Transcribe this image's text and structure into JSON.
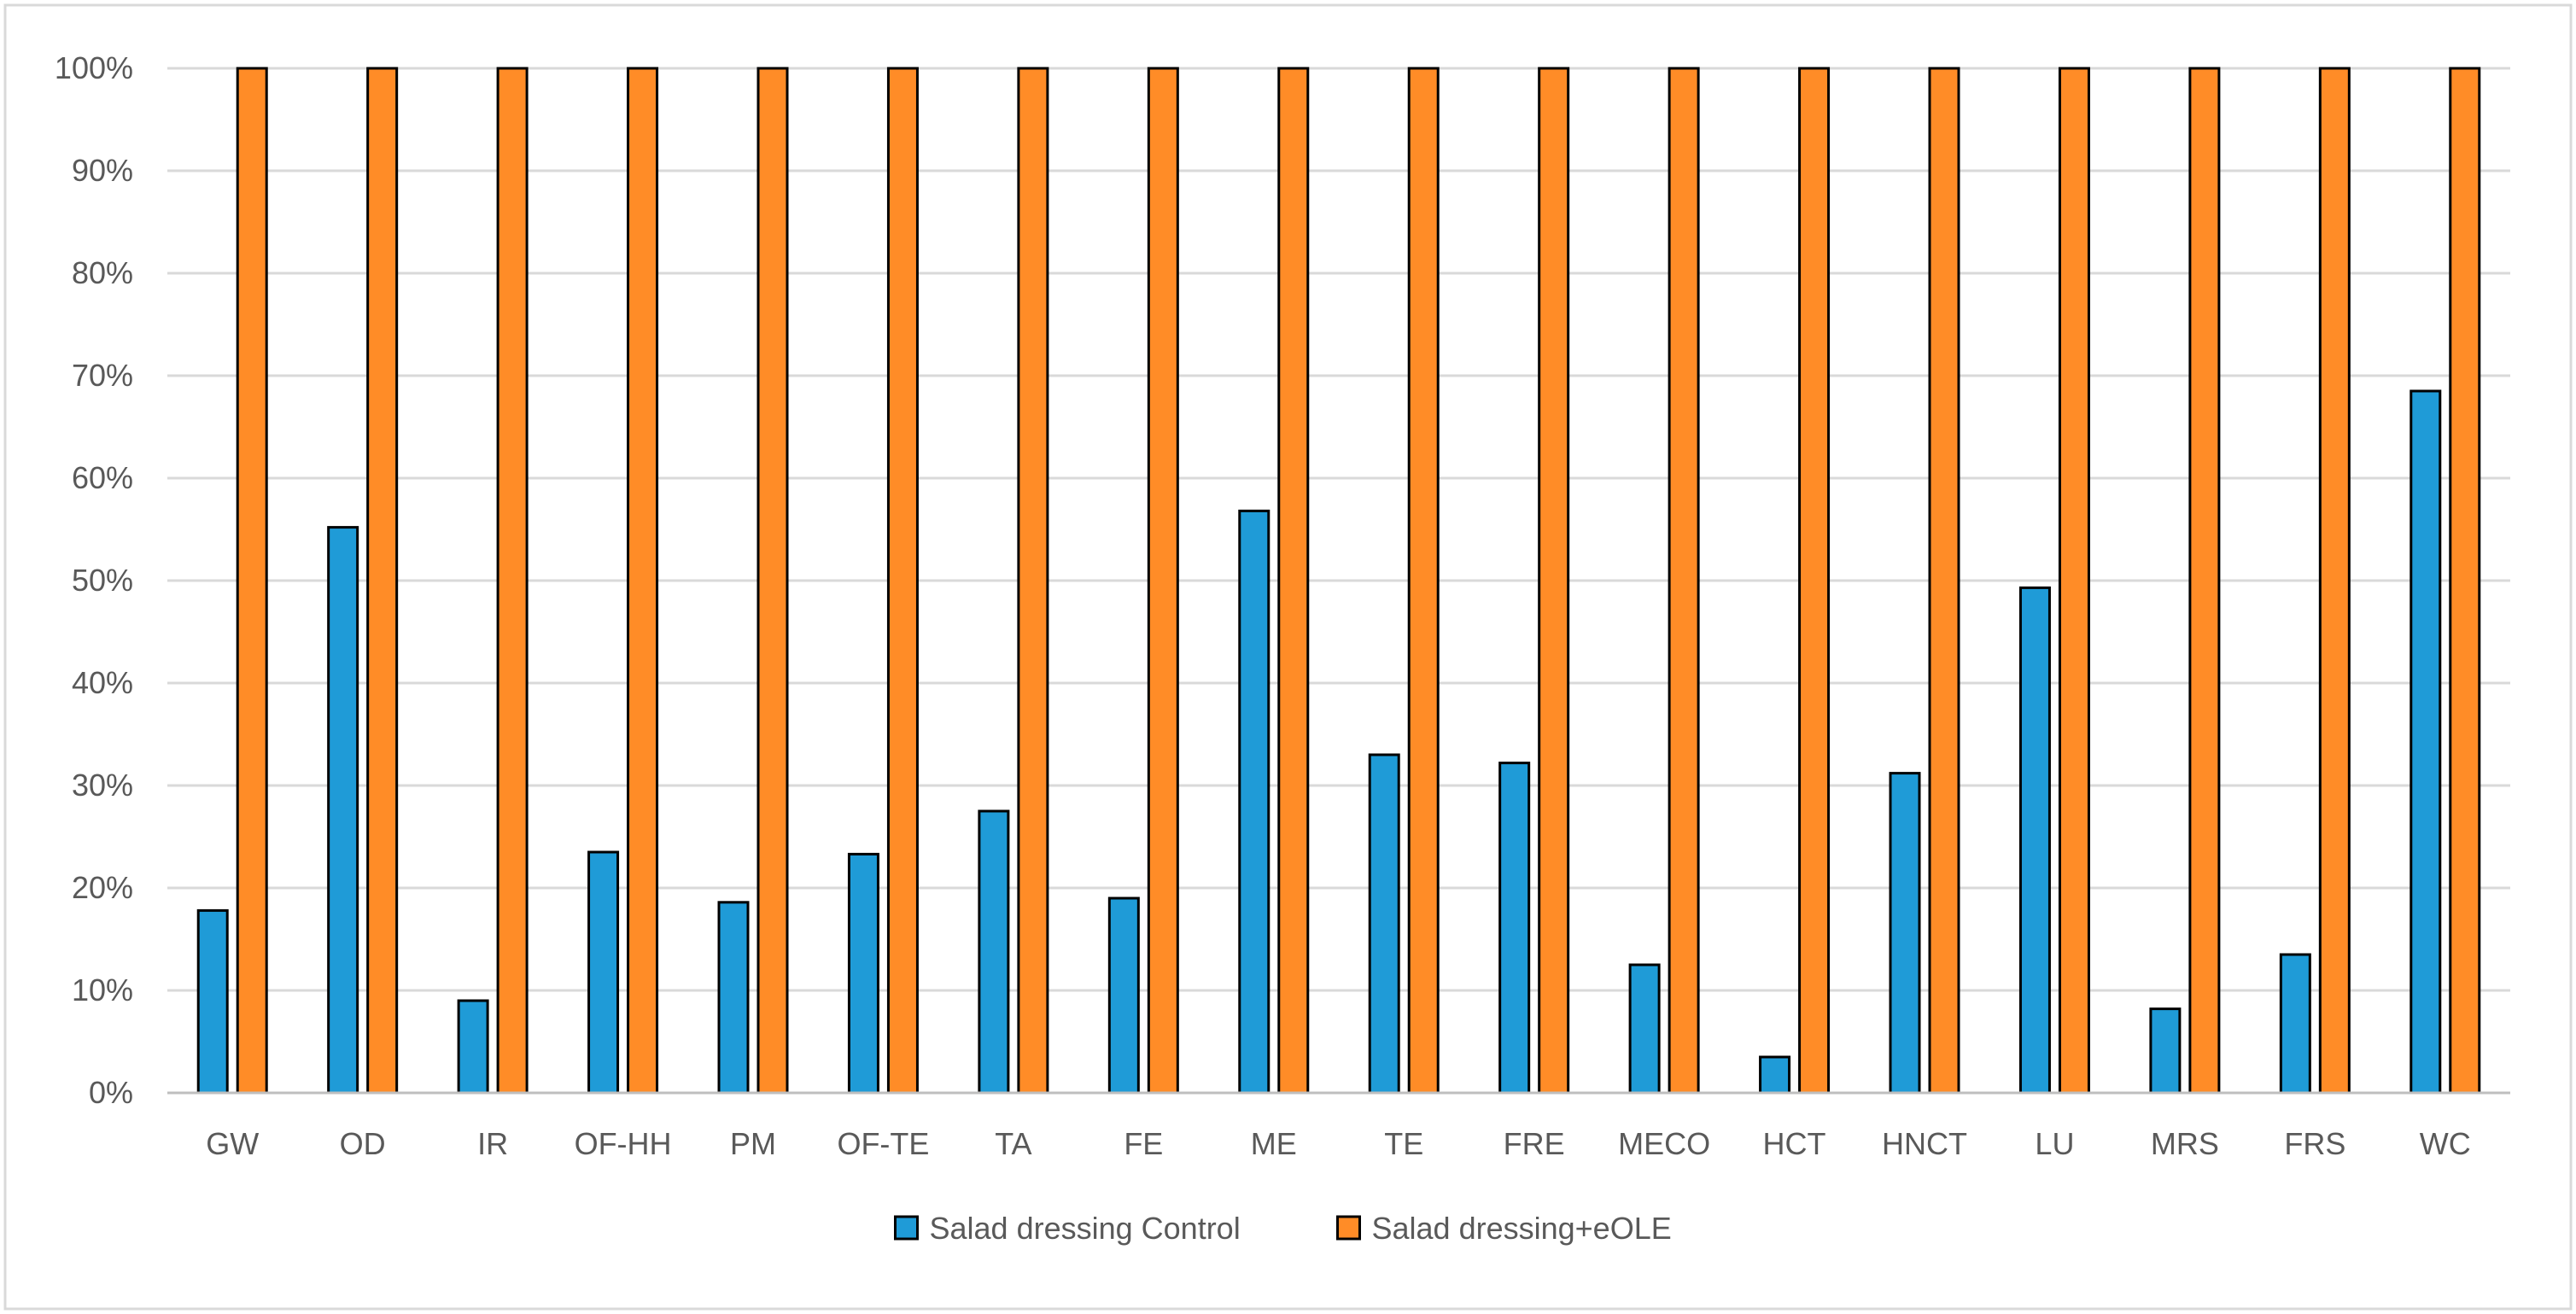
{
  "chart_data": {
    "type": "bar",
    "categories": [
      "GW",
      "OD",
      "IR",
      "OF-HH",
      "PM",
      "OF-TE",
      "TA",
      "FE",
      "ME",
      "TE",
      "FRE",
      "MECO",
      "HCT",
      "HNCT",
      "LU",
      "MRS",
      "FRS",
      "WC"
    ],
    "series": [
      {
        "name": "Salad dressing Control",
        "color": "#1F9BD7",
        "values": [
          17.8,
          55.2,
          9.0,
          23.5,
          18.6,
          23.3,
          27.5,
          19.0,
          56.8,
          33.0,
          32.2,
          12.5,
          3.5,
          31.2,
          49.3,
          8.2,
          13.5,
          68.5
        ]
      },
      {
        "name": "Salad dressing+eOLE",
        "color": "#FF8C27",
        "values": [
          100,
          100,
          100,
          100,
          100,
          100,
          100,
          100,
          100,
          100,
          100,
          100,
          100,
          100,
          100,
          100,
          100,
          100
        ]
      }
    ],
    "y_ticks": [
      "0%",
      "10%",
      "20%",
      "30%",
      "40%",
      "50%",
      "60%",
      "70%",
      "80%",
      "90%",
      "100%"
    ],
    "ylim": [
      0,
      100
    ],
    "title": "",
    "xlabel": "",
    "ylabel": "",
    "grid": true,
    "legend_position": "bottom-center"
  }
}
